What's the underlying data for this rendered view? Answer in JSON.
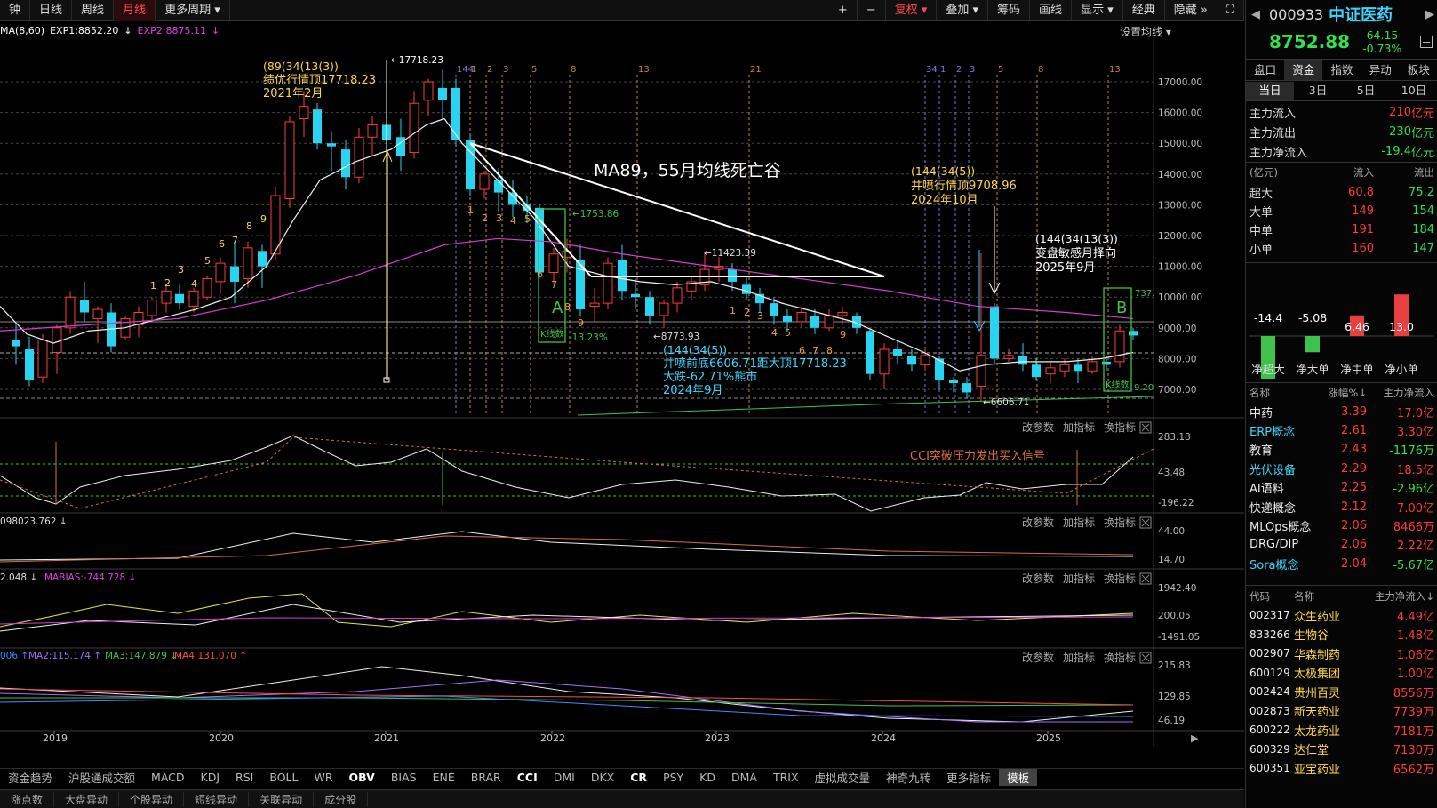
{
  "toolbar": {
    "periods": [
      "钟",
      "日线",
      "周线",
      "月线",
      "更多周期"
    ],
    "active_period": "月线",
    "tools": [
      "+",
      "−",
      "复权",
      "叠加",
      "筹码",
      "画线",
      "显示",
      "经典",
      "隐藏",
      "⛶"
    ]
  },
  "legend": {
    "ma_prefix": "MA(8,60)",
    "exp1": "EXP1:8852.20",
    "exp2": "EXP2:8875.11",
    "settings": "设置均线"
  },
  "main_chart": {
    "price_ticks": [
      "17000.00",
      "16000.00",
      "15000.00",
      "14000.00",
      "13000.00",
      "12000.00",
      "11000.00",
      "10000.00",
      "9000.00",
      "8000.00",
      "7000.00"
    ],
    "fib_labels": [
      "144",
      "1",
      "2",
      "3",
      "5",
      "8",
      "13",
      "21",
      "34",
      "1",
      "2",
      "3",
      "5",
      "8",
      "13"
    ],
    "annotations": {
      "top_title": "(89(34(13(3))",
      "top_line1": "绩优行情顶17718.23",
      "top_line2": "2021年2月",
      "peak_price": "17718.23",
      "dead_valley": "MA89，55月均线死亡谷",
      "ipo_title": "(144(34(5))",
      "ipo_line1": "井喷行情顶9708.96",
      "ipo_line2": "2024年10月",
      "change_title": "(144(34(13(3))",
      "change_line1": "变盘敏感月择向",
      "change_line2": "2025年9月",
      "bottom_title": "(144(34(5))",
      "bottom_line1": "井喷前底6606.71距大顶17718.23",
      "bottom_line2": "大跌-62.71%熊市",
      "bottom_line3": "2024年9月",
      "low_8773": "8773.93",
      "high_11423": "11423.39",
      "val_1753": "1753.86",
      "pct_A": "-13.23%",
      "box_A": "A",
      "box_B": "B",
      "kline_count_A": "K线数",
      "kline_count_B": "K线数",
      "val_737": "737.",
      "val_9_20": "9.20",
      "low_6606": "6606.71",
      "seq_labels_left": [
        "1",
        "2",
        "3",
        "4",
        "5",
        "6",
        "7",
        "8",
        "9"
      ],
      "seq_labels_mid": [
        "1",
        "2",
        "3",
        "4",
        "5",
        "6",
        "7",
        "8",
        "9"
      ]
    }
  },
  "subpanels": [
    {
      "id": "cci",
      "ticks": [
        "283.18",
        "43.48",
        "-196.22"
      ],
      "note": "CCI突破压力发出买入信号",
      "actions": [
        "改参数",
        "加指标",
        "换指标"
      ],
      "legend": ""
    },
    {
      "id": "vol",
      "ticks": [
        "44.00",
        "14.70"
      ],
      "actions": [
        "改参数",
        "加指标",
        "换指标"
      ],
      "legend": "098023.762"
    },
    {
      "id": "mabias",
      "ticks": [
        "1942.40",
        "200.05",
        "-1491.05"
      ],
      "actions": [
        "改参数",
        "加指标",
        "换指标"
      ],
      "legend": "2.048",
      "legend2": "MABIAS:-744.728"
    },
    {
      "id": "ma4",
      "ticks": [
        "215.83",
        "129.85",
        "46.19"
      ],
      "actions": [
        "改参数",
        "加指标",
        "换指标"
      ],
      "legend": "006",
      "ma2": "MA2:115.174",
      "ma3": "MA3:147.879",
      "ma4": "MA4:131.070"
    }
  ],
  "x_axis_years": [
    "2019",
    "2020",
    "2021",
    "2022",
    "2023",
    "2024",
    "2025"
  ],
  "indicator_strip": [
    "资金趋势",
    "沪股通成交额",
    "MACD",
    "KDJ",
    "RSI",
    "BOLL",
    "WR",
    "OBV",
    "BIAS",
    "ENE",
    "BRAR",
    "CCI",
    "DMI",
    "DKX",
    "CR",
    "PSY",
    "KD",
    "DMA",
    "TRIX",
    "虚拟成交量",
    "神奇九转",
    "更多指标",
    "模板"
  ],
  "indicator_strip_bold": [
    "OBV",
    "CCI",
    "CR"
  ],
  "indicator_strip_selected": "模板",
  "bottom_tabs": [
    "涨点数",
    "大盘异动",
    "个股异动",
    "短线异动",
    "关联异动",
    "成分股"
  ],
  "quote": {
    "code": "000933",
    "name": "中证医药",
    "price": "8752.88",
    "change": "-64.15",
    "change_pct": "-0.73%"
  },
  "right_tabs": [
    "盘口",
    "资金",
    "指数",
    "异动",
    "板块"
  ],
  "right_active_tab": "资金",
  "range_tabs": [
    "当日",
    "3日",
    "5日",
    "10日"
  ],
  "range_active": "当日",
  "flows": [
    {
      "label": "主力流入",
      "value": "210",
      "unit": "亿元",
      "color": "red"
    },
    {
      "label": "主力流出",
      "value": "230",
      "unit": "亿元",
      "color": "green"
    },
    {
      "label": "主力净流入",
      "value": "-19.4",
      "unit": "亿元",
      "color": "green"
    }
  ],
  "flow_table": {
    "headers": [
      "(亿元)",
      "流入",
      "流出"
    ],
    "rows": [
      {
        "label": "超大",
        "in": "60.8",
        "out": "75.2"
      },
      {
        "label": "大单",
        "in": "149",
        "out": "154"
      },
      {
        "label": "中单",
        "in": "191",
        "out": "184"
      },
      {
        "label": "小单",
        "in": "160",
        "out": "147"
      }
    ]
  },
  "net_bars": {
    "values": [
      "-14.4",
      "-5.08",
      "6.46",
      "13.0"
    ],
    "numbers": [
      -14.4,
      -5.08,
      6.46,
      13.0
    ],
    "labels": [
      "净超大",
      "净大单",
      "净中单",
      "净小单"
    ]
  },
  "concepts": {
    "headers": [
      "名称",
      "涨幅%",
      "主力净流入"
    ],
    "rows": [
      {
        "name": "中药",
        "pct": "3.39",
        "flow": "17.0亿",
        "flow_color": "red",
        "name_color": "white"
      },
      {
        "name": "ERP概念",
        "pct": "2.61",
        "flow": "3.30亿",
        "flow_color": "red",
        "name_color": "cyan"
      },
      {
        "name": "教育",
        "pct": "2.43",
        "flow": "-1176万",
        "flow_color": "green",
        "name_color": "white"
      },
      {
        "name": "光伏设备",
        "pct": "2.29",
        "flow": "18.5亿",
        "flow_color": "red",
        "name_color": "cyan"
      },
      {
        "name": "AI语料",
        "pct": "2.25",
        "flow": "-2.96亿",
        "flow_color": "green",
        "name_color": "white"
      },
      {
        "name": "快递概念",
        "pct": "2.12",
        "flow": "7.00亿",
        "flow_color": "red",
        "name_color": "white"
      },
      {
        "name": "MLOps概念",
        "pct": "2.06",
        "flow": "8466万",
        "flow_color": "red",
        "name_color": "white"
      },
      {
        "name": "DRG/DIP",
        "pct": "2.06",
        "flow": "2.22亿",
        "flow_color": "red",
        "name_color": "white"
      },
      {
        "name": "Sora概念",
        "pct": "2.04",
        "flow": "-5.67亿",
        "flow_color": "green",
        "name_color": "cyan"
      }
    ]
  },
  "stocks": {
    "headers": [
      "代码",
      "名称",
      "主力净流入"
    ],
    "rows": [
      {
        "code": "002317",
        "name": "众生药业",
        "flow": "4.49亿"
      },
      {
        "code": "833266",
        "name": "生物谷",
        "flow": "1.48亿"
      },
      {
        "code": "002907",
        "name": "华森制药",
        "flow": "1.06亿"
      },
      {
        "code": "600129",
        "name": "太极集团",
        "flow": "1.00亿"
      },
      {
        "code": "002424",
        "name": "贵州百灵",
        "flow": "8556万"
      },
      {
        "code": "002873",
        "name": "新天药业",
        "flow": "7739万"
      },
      {
        "code": "600222",
        "name": "太龙药业",
        "flow": "7181万"
      },
      {
        "code": "600329",
        "name": "达仁堂",
        "flow": "7130万"
      },
      {
        "code": "600351",
        "name": "亚宝药业",
        "flow": "6562万"
      }
    ]
  }
}
